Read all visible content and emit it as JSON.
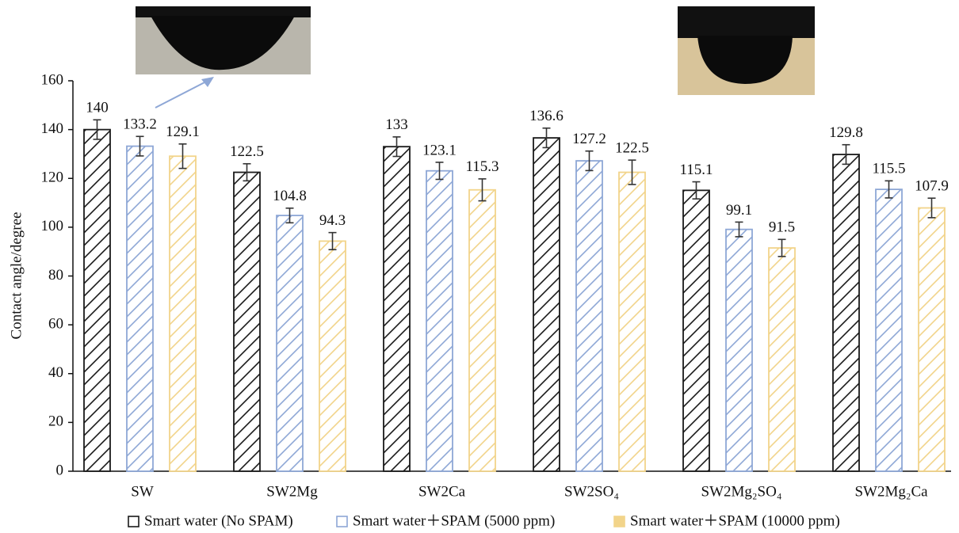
{
  "chart_data": {
    "type": "bar",
    "y_label": "Contact angle/degree",
    "categories": [
      "SW",
      "SW2Mg",
      "SW2Ca",
      "SW2SO₄",
      "SW2Mg₂SO₄",
      "SW2Mg₂Ca"
    ],
    "series": [
      {
        "name": "Smart water (No SPAM)",
        "color": "#1a1a1a",
        "values": [
          140,
          122.5,
          133,
          136.6,
          115.1,
          129.8
        ],
        "errors": [
          4,
          3.5,
          4,
          4,
          3.5,
          4
        ]
      },
      {
        "name": "Smart water＋SPAM (5000 ppm)",
        "color": "#8ea7d6",
        "values": [
          133.2,
          104.8,
          123.1,
          127.2,
          99.1,
          115.5
        ],
        "errors": [
          4,
          3,
          3.5,
          4,
          3,
          3.5
        ]
      },
      {
        "name": "Smart water＋SPAM (10000 ppm)",
        "color": "#f2d48a",
        "values": [
          129.1,
          94.3,
          115.3,
          122.5,
          91.5,
          107.9
        ],
        "errors": [
          5,
          3.5,
          4.5,
          5,
          3.5,
          4
        ]
      }
    ],
    "ylim": [
      0,
      160
    ],
    "yticks": [
      0,
      20,
      40,
      60,
      80,
      100,
      120,
      140,
      160
    ]
  }
}
